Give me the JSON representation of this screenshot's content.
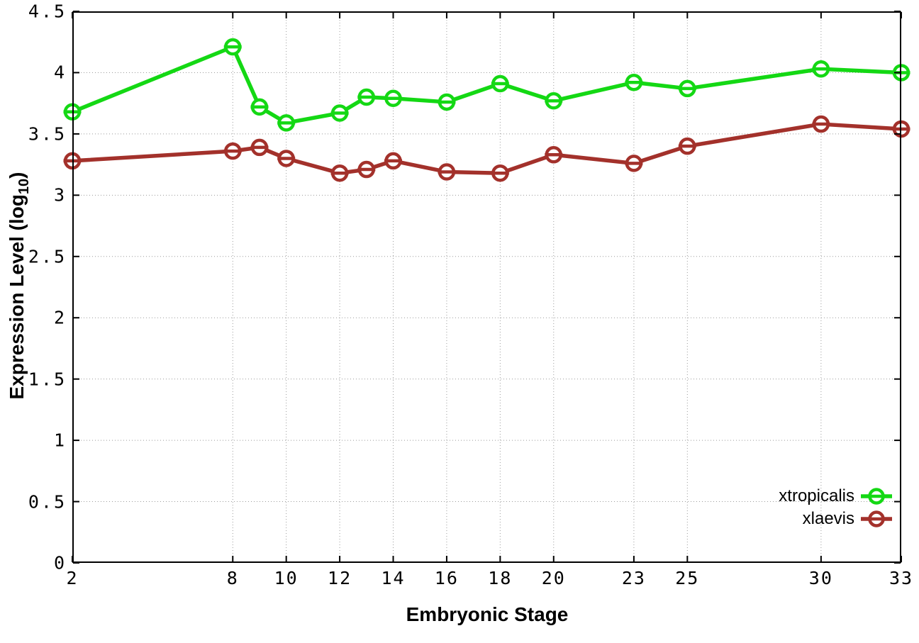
{
  "chart_data": {
    "type": "line",
    "xlabel": "Embryonic Stage",
    "ylabel": {
      "prefix": "Expression Level (log",
      "sub": "10",
      "suffix": ")"
    },
    "x": [
      2,
      8,
      9,
      10,
      12,
      13,
      14,
      16,
      18,
      20,
      23,
      25,
      30,
      33
    ],
    "series": [
      {
        "name": "xtropicalis",
        "color": "#14d814",
        "values": [
          3.68,
          4.21,
          3.72,
          3.59,
          3.67,
          3.8,
          3.79,
          3.76,
          3.91,
          3.77,
          3.92,
          3.87,
          4.03,
          4.0
        ]
      },
      {
        "name": "xlaevis",
        "color": "#a3312b",
        "values": [
          3.28,
          3.36,
          3.39,
          3.3,
          3.18,
          3.21,
          3.28,
          3.19,
          3.18,
          3.33,
          3.26,
          3.4,
          3.58,
          3.54
        ]
      }
    ],
    "xlim": [
      2,
      33
    ],
    "ylim": [
      0,
      4.5
    ],
    "xtick_values": [
      2,
      8,
      10,
      12,
      14,
      16,
      18,
      20,
      23,
      25,
      30,
      33
    ],
    "xtick_labels": [
      "2",
      "8",
      "10",
      "12",
      "14",
      "16",
      "18",
      "20",
      "23",
      "25",
      "30",
      "33"
    ],
    "ytick_values": [
      0,
      0.5,
      1,
      1.5,
      2,
      2.5,
      3,
      3.5,
      4,
      4.5
    ],
    "ytick_labels": [
      "0",
      "0.5",
      "1",
      "1.5",
      "2",
      "2.5",
      "3",
      "3.5",
      "4",
      "4.5"
    ],
    "grid": true,
    "legend_position": "bottom-right",
    "marker": "open-circle-with-error-dash",
    "grid_color": "#9b9b9b",
    "border_color": "#000000"
  }
}
